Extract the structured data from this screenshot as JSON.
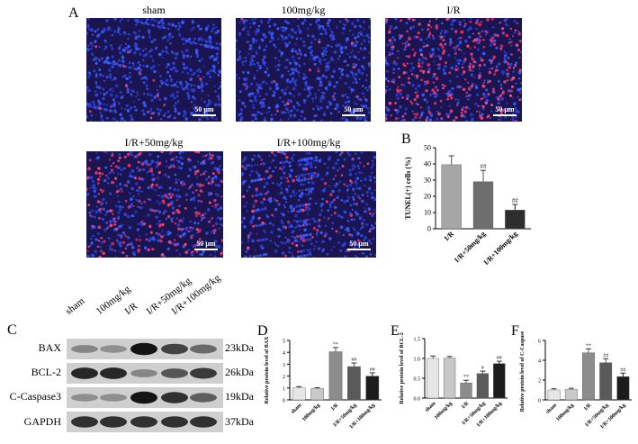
{
  "panels": {
    "a_letter": "A",
    "b_letter": "B",
    "c_letter": "C",
    "d_letter": "D",
    "e_letter": "E",
    "f_letter": "F"
  },
  "micrographs": [
    {
      "title": "sham",
      "scale": "50 μm",
      "apoptosis": 0.02
    },
    {
      "title": "100mg/kg",
      "scale": "50 μm",
      "apoptosis": 0.02
    },
    {
      "title": "I/R",
      "scale": "50 μm",
      "apoptosis": 0.4
    },
    {
      "title": "I/R+50mg/kg",
      "scale": "50 μm",
      "apoptosis": 0.29
    },
    {
      "title": "I/R+100mg/kg",
      "scale": "50 μm",
      "apoptosis": 0.12
    }
  ],
  "western": {
    "lanes": [
      "sham",
      "100mg/kg",
      "I/R",
      "I/R+50mg/kg",
      "I/R+100mg/kg"
    ],
    "bands": [
      {
        "label": "BAX",
        "kda": "23kDa",
        "intensity": [
          0.35,
          0.3,
          0.95,
          0.7,
          0.5
        ]
      },
      {
        "label": "BCL-2",
        "kda": "26kDa",
        "intensity": [
          0.85,
          0.85,
          0.35,
          0.6,
          0.75
        ]
      },
      {
        "label": "C-Caspase3",
        "kda": "19kDa",
        "intensity": [
          0.3,
          0.3,
          0.95,
          0.8,
          0.55
        ]
      },
      {
        "label": "GAPDH",
        "kda": "37kDa",
        "intensity": [
          0.8,
          0.8,
          0.8,
          0.8,
          0.8
        ]
      }
    ]
  },
  "chart_data": [
    {
      "panel": "B",
      "type": "bar",
      "ylabel": "TUNEL(+) cells (%)",
      "categories": [
        "I/R",
        "I/R+50mg/kg",
        "I/R+100mg/kg"
      ],
      "values": [
        39.5,
        29,
        11.5
      ],
      "errors": [
        5.5,
        7,
        3.5
      ],
      "annotations": [
        "",
        "##",
        "##"
      ],
      "colors": [
        "#a6a6a6",
        "#6e6e6e",
        "#2e2e2e"
      ],
      "ylim": [
        0,
        50
      ],
      "yticks": [
        0,
        10,
        20,
        30,
        40,
        50
      ]
    },
    {
      "panel": "D",
      "type": "bar",
      "ylabel": "Relative protein level of BAX",
      "categories": [
        "sham",
        "100mg/kg",
        "I/R",
        "I/R+50mg/kg",
        "I/R+100mg/kg"
      ],
      "values": [
        1.0,
        0.95,
        4.05,
        2.8,
        2.0
      ],
      "errors": [
        0.12,
        0.08,
        0.35,
        0.3,
        0.28
      ],
      "annotations": [
        "",
        "",
        "**",
        "##",
        "##"
      ],
      "colors": [
        "#e6e6e6",
        "#c8c8c8",
        "#8c8c8c",
        "#5a5a5a",
        "#1c1c1c"
      ],
      "ylim": [
        0,
        5
      ],
      "yticks": [
        0,
        1,
        2,
        3,
        4,
        5
      ]
    },
    {
      "panel": "E",
      "type": "bar",
      "ylabel": "Relative protein level of BCL-2",
      "categories": [
        "sham",
        "100mg/kg",
        "I/R",
        "I/R+50mg/kg",
        "I/R+100mg/kg"
      ],
      "values": [
        1.0,
        1.01,
        0.38,
        0.62,
        0.87
      ],
      "errors": [
        0.06,
        0.04,
        0.07,
        0.06,
        0.06
      ],
      "annotations": [
        "",
        "",
        "**",
        "#",
        "##"
      ],
      "colors": [
        "#e6e6e6",
        "#c8c8c8",
        "#8c8c8c",
        "#5a5a5a",
        "#1c1c1c"
      ],
      "ylim": [
        0,
        1.5
      ],
      "yticks": [
        0.0,
        0.5,
        1.0,
        1.5
      ]
    },
    {
      "panel": "F",
      "type": "bar",
      "ylabel": "Relative protein level of C-Caspase3",
      "categories": [
        "sham",
        "100mg/kg",
        "I/R",
        "I/R+50mg/kg",
        "I/R+100mg/kg"
      ],
      "values": [
        1.0,
        1.05,
        4.75,
        3.75,
        2.35
      ],
      "errors": [
        0.12,
        0.12,
        0.4,
        0.4,
        0.35
      ],
      "annotations": [
        "",
        "",
        "**",
        "##",
        "##"
      ],
      "colors": [
        "#e6e6e6",
        "#c8c8c8",
        "#8c8c8c",
        "#5a5a5a",
        "#1c1c1c"
      ],
      "ylim": [
        0,
        6
      ],
      "yticks": [
        0,
        2,
        4,
        6
      ]
    }
  ]
}
